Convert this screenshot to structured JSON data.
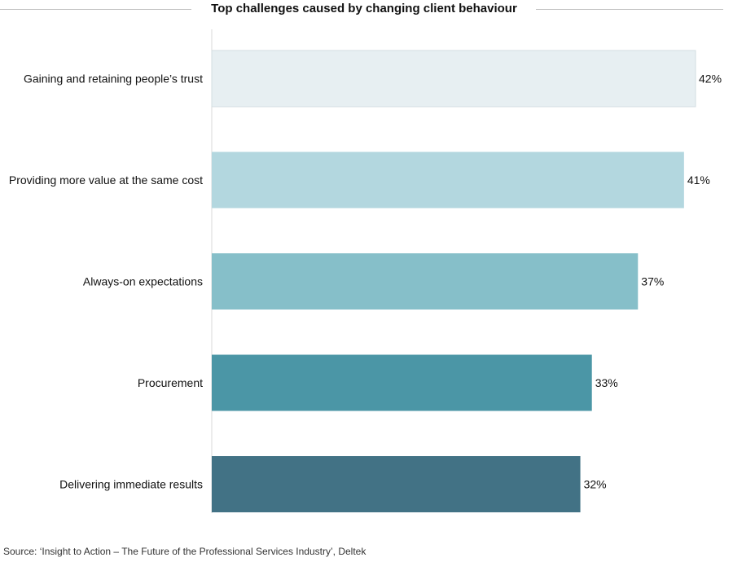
{
  "chart_data": {
    "type": "bar",
    "orientation": "horizontal",
    "title": "Top challenges caused by changing client behaviour",
    "categories": [
      "Gaining and retaining people’s trust",
      "Providing more value at the same cost",
      "Always-on expectations",
      "Procurement",
      "Delivering immediate results"
    ],
    "values": [
      42,
      41,
      37,
      33,
      32
    ],
    "value_labels": [
      "42%",
      "41%",
      "37%",
      "33%",
      "32%"
    ],
    "unit": "%",
    "colors": [
      "#e7eff2",
      "#b3d7df",
      "#86bfc9",
      "#4b96a6",
      "#427285"
    ],
    "grid": false,
    "legend": "none"
  },
  "source": "Source: ‘Insight to Action – The Future of the Professional Services Industry’, Deltek"
}
